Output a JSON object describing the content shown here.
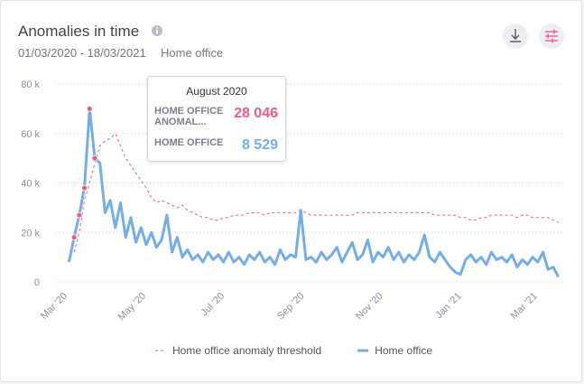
{
  "header": {
    "title": "Anomalies in time",
    "date_range": "01/03/2020 - 18/03/2021",
    "scope": "Home office"
  },
  "chart_data": {
    "type": "line",
    "x": [
      "2020-03-02",
      "2020-03-06",
      "2020-03-10",
      "2020-03-14",
      "2020-03-18",
      "2020-03-22",
      "2020-03-26",
      "2020-03-30",
      "2020-04-03",
      "2020-04-07",
      "2020-04-11",
      "2020-04-15",
      "2020-04-19",
      "2020-04-23",
      "2020-04-27",
      "2020-05-01",
      "2020-05-05",
      "2020-05-09",
      "2020-05-13",
      "2020-05-17",
      "2020-05-21",
      "2020-05-25",
      "2020-05-29",
      "2020-06-02",
      "2020-06-06",
      "2020-06-10",
      "2020-06-14",
      "2020-06-18",
      "2020-06-22",
      "2020-06-26",
      "2020-06-30",
      "2020-07-04",
      "2020-07-08",
      "2020-07-12",
      "2020-07-16",
      "2020-07-20",
      "2020-07-24",
      "2020-07-28",
      "2020-08-01",
      "2020-08-05",
      "2020-08-09",
      "2020-08-13",
      "2020-08-17",
      "2020-08-21",
      "2020-08-25",
      "2020-08-29",
      "2020-09-02",
      "2020-09-06",
      "2020-09-10",
      "2020-09-14",
      "2020-09-18",
      "2020-09-22",
      "2020-09-26",
      "2020-09-30",
      "2020-10-04",
      "2020-10-08",
      "2020-10-12",
      "2020-10-16",
      "2020-10-20",
      "2020-10-24",
      "2020-10-28",
      "2020-11-01",
      "2020-11-05",
      "2020-11-09",
      "2020-11-13",
      "2020-11-17",
      "2020-11-21",
      "2020-11-25",
      "2020-11-29",
      "2020-12-03",
      "2020-12-07",
      "2020-12-11",
      "2020-12-15",
      "2020-12-19",
      "2020-12-23",
      "2020-12-27",
      "2020-12-31",
      "2021-01-04",
      "2021-01-08",
      "2021-01-12",
      "2021-01-16",
      "2021-01-20",
      "2021-01-24",
      "2021-01-28",
      "2021-02-01",
      "2021-02-05",
      "2021-02-09",
      "2021-02-13",
      "2021-02-17",
      "2021-02-21",
      "2021-02-25",
      "2021-03-01",
      "2021-03-05",
      "2021-03-09",
      "2021-03-13",
      "2021-03-17"
    ],
    "series": [
      {
        "name": "Home office anomaly threshold",
        "color": "#ee5a89",
        "dashed": true,
        "values": [
          null,
          12000,
          20000,
          33000,
          40000,
          48000,
          55000,
          57000,
          58000,
          60000,
          55000,
          50000,
          47000,
          44000,
          41000,
          38000,
          34000,
          32000,
          33000,
          32000,
          31000,
          30000,
          31000,
          29000,
          28000,
          27000,
          26000,
          26000,
          25000,
          25000,
          26000,
          26000,
          27000,
          27000,
          27000,
          28000,
          28000,
          28000,
          27000,
          28000,
          28000,
          28000,
          28000,
          28000,
          28000,
          29000,
          28000,
          27000,
          27000,
          27000,
          27000,
          27000,
          27000,
          27000,
          27000,
          27000,
          28000,
          28000,
          28000,
          28000,
          28000,
          28000,
          28000,
          28000,
          28000,
          28000,
          28000,
          28000,
          28000,
          28000,
          28000,
          27000,
          27000,
          27000,
          27000,
          27000,
          26000,
          26000,
          25000,
          25000,
          26000,
          26000,
          27000,
          27000,
          27000,
          27000,
          27000,
          26000,
          27000,
          27000,
          26000,
          26000,
          26000,
          26000,
          25000,
          24000
        ]
      },
      {
        "name": "Home office",
        "color": "#74aee6",
        "dashed": false,
        "values": [
          8000,
          18000,
          27000,
          38000,
          70000,
          50000,
          48000,
          28000,
          33000,
          22000,
          32000,
          18000,
          26000,
          16000,
          22000,
          15000,
          20000,
          14000,
          17000,
          27000,
          12000,
          18000,
          10000,
          13000,
          9000,
          11000,
          8000,
          12000,
          9000,
          11000,
          8000,
          12000,
          8000,
          10000,
          7000,
          11000,
          9000,
          12000,
          8000,
          10000,
          7000,
          13000,
          9000,
          11000,
          10000,
          29000,
          9000,
          10000,
          8000,
          12000,
          9000,
          11000,
          14000,
          8000,
          12000,
          16000,
          9000,
          11000,
          17000,
          8000,
          12000,
          10000,
          14000,
          9000,
          12000,
          8000,
          11000,
          9000,
          12000,
          19000,
          10000,
          8000,
          12000,
          9000,
          6000,
          4000,
          3000,
          9000,
          11000,
          8000,
          10000,
          7000,
          12000,
          9000,
          10000,
          8000,
          11000,
          6000,
          9000,
          7000,
          10000,
          8000,
          12000,
          5000,
          6000,
          2000
        ]
      }
    ],
    "xlim": [
      "2020-03-01",
      "2021-03-18"
    ],
    "xticks": [
      {
        "value": "2020-03-01",
        "label": "Mar '20"
      },
      {
        "value": "2020-05-01",
        "label": "May '20"
      },
      {
        "value": "2020-07-01",
        "label": "Jul '20"
      },
      {
        "value": "2020-09-01",
        "label": "Sep '20"
      },
      {
        "value": "2020-11-01",
        "label": "Nov '20"
      },
      {
        "value": "2021-01-01",
        "label": "Jan '21"
      },
      {
        "value": "2021-03-01",
        "label": "Mar '21"
      }
    ],
    "ylim": [
      0,
      80000
    ],
    "yticks": [
      0,
      {
        "value": 20000,
        "label": "20 k"
      },
      {
        "value": 40000,
        "label": "40 k"
      },
      {
        "value": 60000,
        "label": "60 k"
      },
      {
        "value": 80000,
        "label": "80 k"
      }
    ],
    "grid": true,
    "legend": "bottom",
    "tooltip": {
      "title": "August 2020",
      "items": [
        {
          "name": "HOME OFFICE ANOMAL...",
          "value": 28046,
          "value_label": "28 046"
        },
        {
          "name": "HOME OFFICE",
          "value": 8529,
          "value_label": "8 529"
        }
      ]
    }
  }
}
